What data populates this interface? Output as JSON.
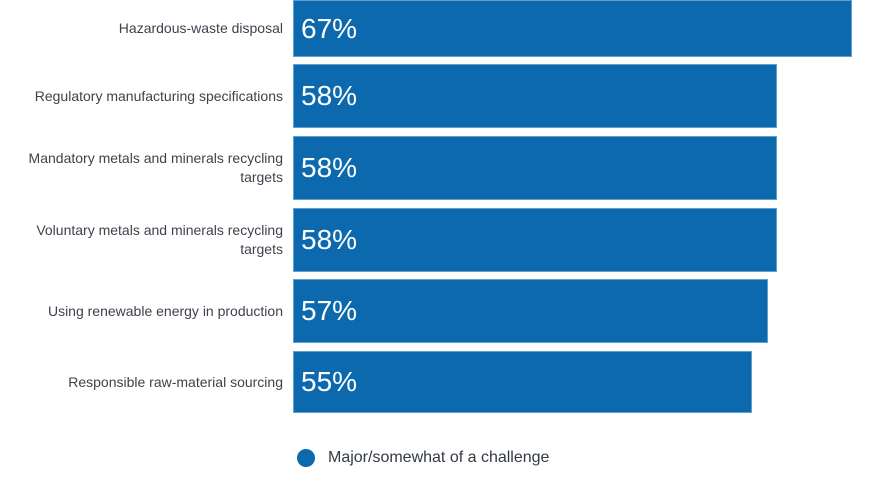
{
  "chart_data": {
    "type": "bar",
    "orientation": "horizontal",
    "title": "",
    "xlabel": "",
    "ylabel": "",
    "xlim": [
      0,
      100
    ],
    "grid": false,
    "legend_position": "bottom",
    "bar_color": "#0c69ae",
    "value_label_color": "#ffffff",
    "category_label_color": "#3d434c",
    "categories": [
      "Hazardous-waste disposal",
      "Regulatory manufacturing specifications",
      "Mandatory metals and minerals recycling targets",
      "Voluntary metals and minerals recycling targets",
      "Using renewable energy in production",
      "Responsible raw-material sourcing"
    ],
    "series": [
      {
        "name": "Major/somewhat of a challenge",
        "values": [
          67,
          58,
          58,
          58,
          57,
          55
        ],
        "value_labels": [
          "67%",
          "58%",
          "58%",
          "58%",
          "57%",
          "55%"
        ]
      }
    ]
  },
  "legend": {
    "label": "Major/somewhat of a challenge",
    "marker_color": "#0c69ae",
    "marker_shape": "circle"
  }
}
